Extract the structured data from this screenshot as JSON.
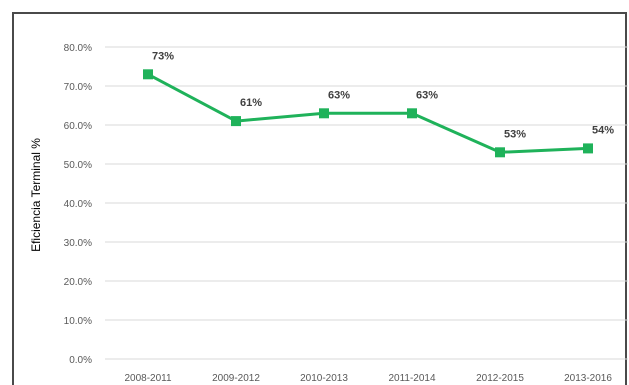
{
  "chart_data": {
    "type": "line",
    "title": "",
    "xlabel": "",
    "ylabel": "Eficiencia Terminal %",
    "categories": [
      "2008-2011",
      "2009-2012",
      "2010-2013",
      "2011-2014",
      "2012-2015",
      "2013-2016"
    ],
    "series": [
      {
        "values": [
          73,
          61,
          63,
          63,
          53,
          54
        ],
        "data_labels": [
          "73%",
          "61%",
          "63%",
          "63%",
          "53%",
          "54%"
        ],
        "color": "#1fb25a"
      }
    ],
    "y_ticks": [
      "0.0%",
      "10.0%",
      "20.0%",
      "30.0%",
      "40.0%",
      "50.0%",
      "60.0%",
      "70.0%",
      "80.0%"
    ],
    "ylim": [
      0,
      80
    ],
    "grid": true,
    "legend": "none",
    "gridline_color": "#d9d9d9"
  }
}
